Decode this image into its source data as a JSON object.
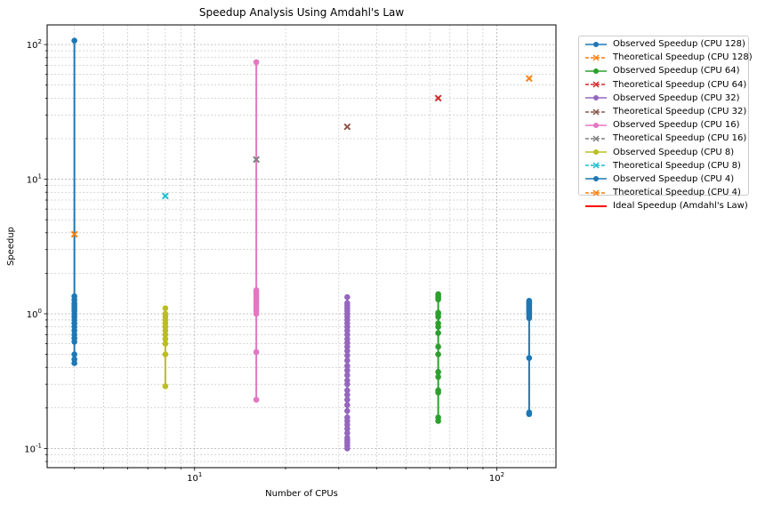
{
  "chart_data": {
    "type": "scatter",
    "title": "Speedup Analysis Using Amdahl's Law",
    "xlabel": "Number of CPUs",
    "ylabel": "Speedup",
    "xscale": "log",
    "yscale": "log",
    "xlim": [
      3.25,
      157
    ],
    "ylim": [
      0.072,
      140
    ],
    "x_tick_labels": [
      {
        "value": 10,
        "label": "10^1"
      },
      {
        "value": 100,
        "label": "10^2"
      }
    ],
    "y_tick_labels": [
      {
        "value": 0.1,
        "label": "10^-1"
      },
      {
        "value": 1,
        "label": "10^0"
      },
      {
        "value": 10,
        "label": "10^1"
      },
      {
        "value": 100,
        "label": "10^2"
      }
    ],
    "grid": true,
    "legend_position": "outside-right-top",
    "series": [
      {
        "name": "Observed Speedup (CPU 128)",
        "kind": "observed",
        "color": "#1f77b4",
        "x": 128,
        "values": [
          0.18,
          0.185,
          0.47,
          0.93,
          0.96,
          1.0,
          1.02,
          1.05,
          1.08,
          1.1,
          1.12,
          1.15,
          1.18,
          1.2,
          1.22,
          1.25
        ]
      },
      {
        "name": "Theoretical Speedup (CPU 128)",
        "kind": "theoretical",
        "color": "#ff7f0e",
        "x": 128,
        "values": [
          56
        ]
      },
      {
        "name": "Observed Speedup (CPU 64)",
        "kind": "observed",
        "color": "#2ca02c",
        "x": 64,
        "values": [
          0.16,
          0.17,
          0.26,
          0.27,
          0.34,
          0.37,
          0.5,
          0.57,
          0.72,
          0.8,
          0.85,
          0.95,
          1.0,
          1.02,
          1.28,
          1.32,
          1.36,
          1.4
        ]
      },
      {
        "name": "Theoretical Speedup (CPU 64)",
        "kind": "theoretical",
        "color": "#d62728",
        "x": 64,
        "values": [
          40
        ]
      },
      {
        "name": "Observed Speedup (CPU 32)",
        "kind": "observed",
        "color": "#9467bd",
        "x": 32,
        "values": [
          0.1,
          0.105,
          0.11,
          0.115,
          0.12,
          0.13,
          0.14,
          0.15,
          0.16,
          0.17,
          0.19,
          0.21,
          0.23,
          0.25,
          0.27,
          0.3,
          0.32,
          0.35,
          0.38,
          0.41,
          0.45,
          0.49,
          0.53,
          0.57,
          0.61,
          0.65,
          0.7,
          0.75,
          0.8,
          0.85,
          0.9,
          0.95,
          1.0,
          1.05,
          1.1,
          1.15,
          1.2,
          1.33
        ]
      },
      {
        "name": "Theoretical Speedup (CPU 32)",
        "kind": "theoretical",
        "color": "#8c564b",
        "x": 32,
        "values": [
          24.5
        ]
      },
      {
        "name": "Observed Speedup (CPU 16)",
        "kind": "observed",
        "color": "#e377c2",
        "x": 16,
        "values": [
          0.23,
          0.52,
          1.0,
          1.05,
          1.1,
          1.15,
          1.2,
          1.25,
          1.3,
          1.35,
          1.4,
          1.45,
          1.5,
          74
        ]
      },
      {
        "name": "Theoretical Speedup (CPU 16)",
        "kind": "theoretical",
        "color": "#7f7f7f",
        "x": 16,
        "values": [
          14
        ]
      },
      {
        "name": "Observed Speedup (CPU 8)",
        "kind": "observed",
        "color": "#bcbd22",
        "x": 8,
        "values": [
          0.29,
          0.5,
          0.6,
          0.65,
          0.7,
          0.75,
          0.8,
          0.85,
          0.9,
          0.95,
          1.0,
          1.1
        ]
      },
      {
        "name": "Theoretical Speedup (CPU 8)",
        "kind": "theoretical",
        "color": "#17becf",
        "x": 8,
        "values": [
          7.5
        ]
      },
      {
        "name": "Observed Speedup (CPU 4)",
        "kind": "observed",
        "color": "#1f77b4",
        "x": 4,
        "values": [
          0.43,
          0.46,
          0.5,
          0.62,
          0.66,
          0.7,
          0.75,
          0.8,
          0.85,
          0.9,
          0.95,
          1.0,
          1.05,
          1.1,
          1.15,
          1.2,
          1.27,
          1.35,
          107
        ]
      },
      {
        "name": "Theoretical Speedup (CPU 4)",
        "kind": "theoretical",
        "color": "#ff7f0e",
        "x": 4,
        "values": [
          3.9
        ]
      },
      {
        "name": "Ideal Speedup (Amdahl's Law)",
        "kind": "ideal",
        "color": "#ff0000",
        "x": null,
        "values": []
      }
    ]
  }
}
